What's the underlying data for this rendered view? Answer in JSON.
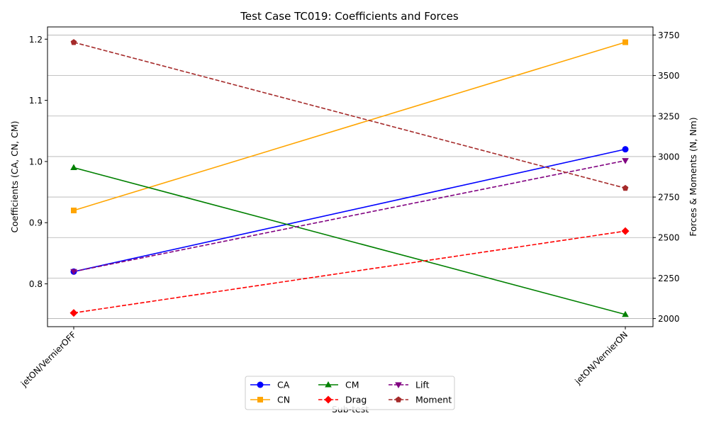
{
  "chart_data": {
    "type": "line",
    "title": "Test Case TC019: Coefficients and Forces",
    "xlabel": "Sub-test",
    "ylabel_left": "Coefficients (CA, CN, CM)",
    "ylabel_right": "Forces & Moments (N, Nm)",
    "categories": [
      "jetON/VernierOFF",
      "jetON/VernierON"
    ],
    "ylim_left": [
      0.73,
      1.22
    ],
    "ylim_right": [
      1950,
      3800
    ],
    "yticks_left": [
      "0.8",
      "0.9",
      "1.0",
      "1.1",
      "1.2"
    ],
    "yticks_right": [
      "2000",
      "2250",
      "2500",
      "2750",
      "3000",
      "3250",
      "3500",
      "3750"
    ],
    "grid": "right-axis horizontal lines",
    "legend_position": "bottom-center",
    "series_left": [
      {
        "name": "CA",
        "values": [
          0.82,
          1.02
        ],
        "color": "#0000ff",
        "marker": "circle",
        "dash": "solid"
      },
      {
        "name": "CN",
        "values": [
          0.92,
          1.195
        ],
        "color": "#ffa500",
        "marker": "square",
        "dash": "solid"
      },
      {
        "name": "CM",
        "values": [
          0.99,
          0.75
        ],
        "color": "#008000",
        "marker": "triangle-up",
        "dash": "solid"
      }
    ],
    "series_right": [
      {
        "name": "Drag",
        "values": [
          2035,
          2540
        ],
        "color": "#ff0000",
        "marker": "diamond",
        "dash": "dashed"
      },
      {
        "name": "Lift",
        "values": [
          2290,
          2975
        ],
        "color": "#800080",
        "marker": "triangle-down",
        "dash": "dashed"
      },
      {
        "name": "Moment",
        "values": [
          3705,
          2805
        ],
        "color": "#a52a2a",
        "marker": "pentagon",
        "dash": "dashed"
      }
    ],
    "legend_order": [
      "CA",
      "CN",
      "CM",
      "Drag",
      "Lift",
      "Moment"
    ]
  }
}
